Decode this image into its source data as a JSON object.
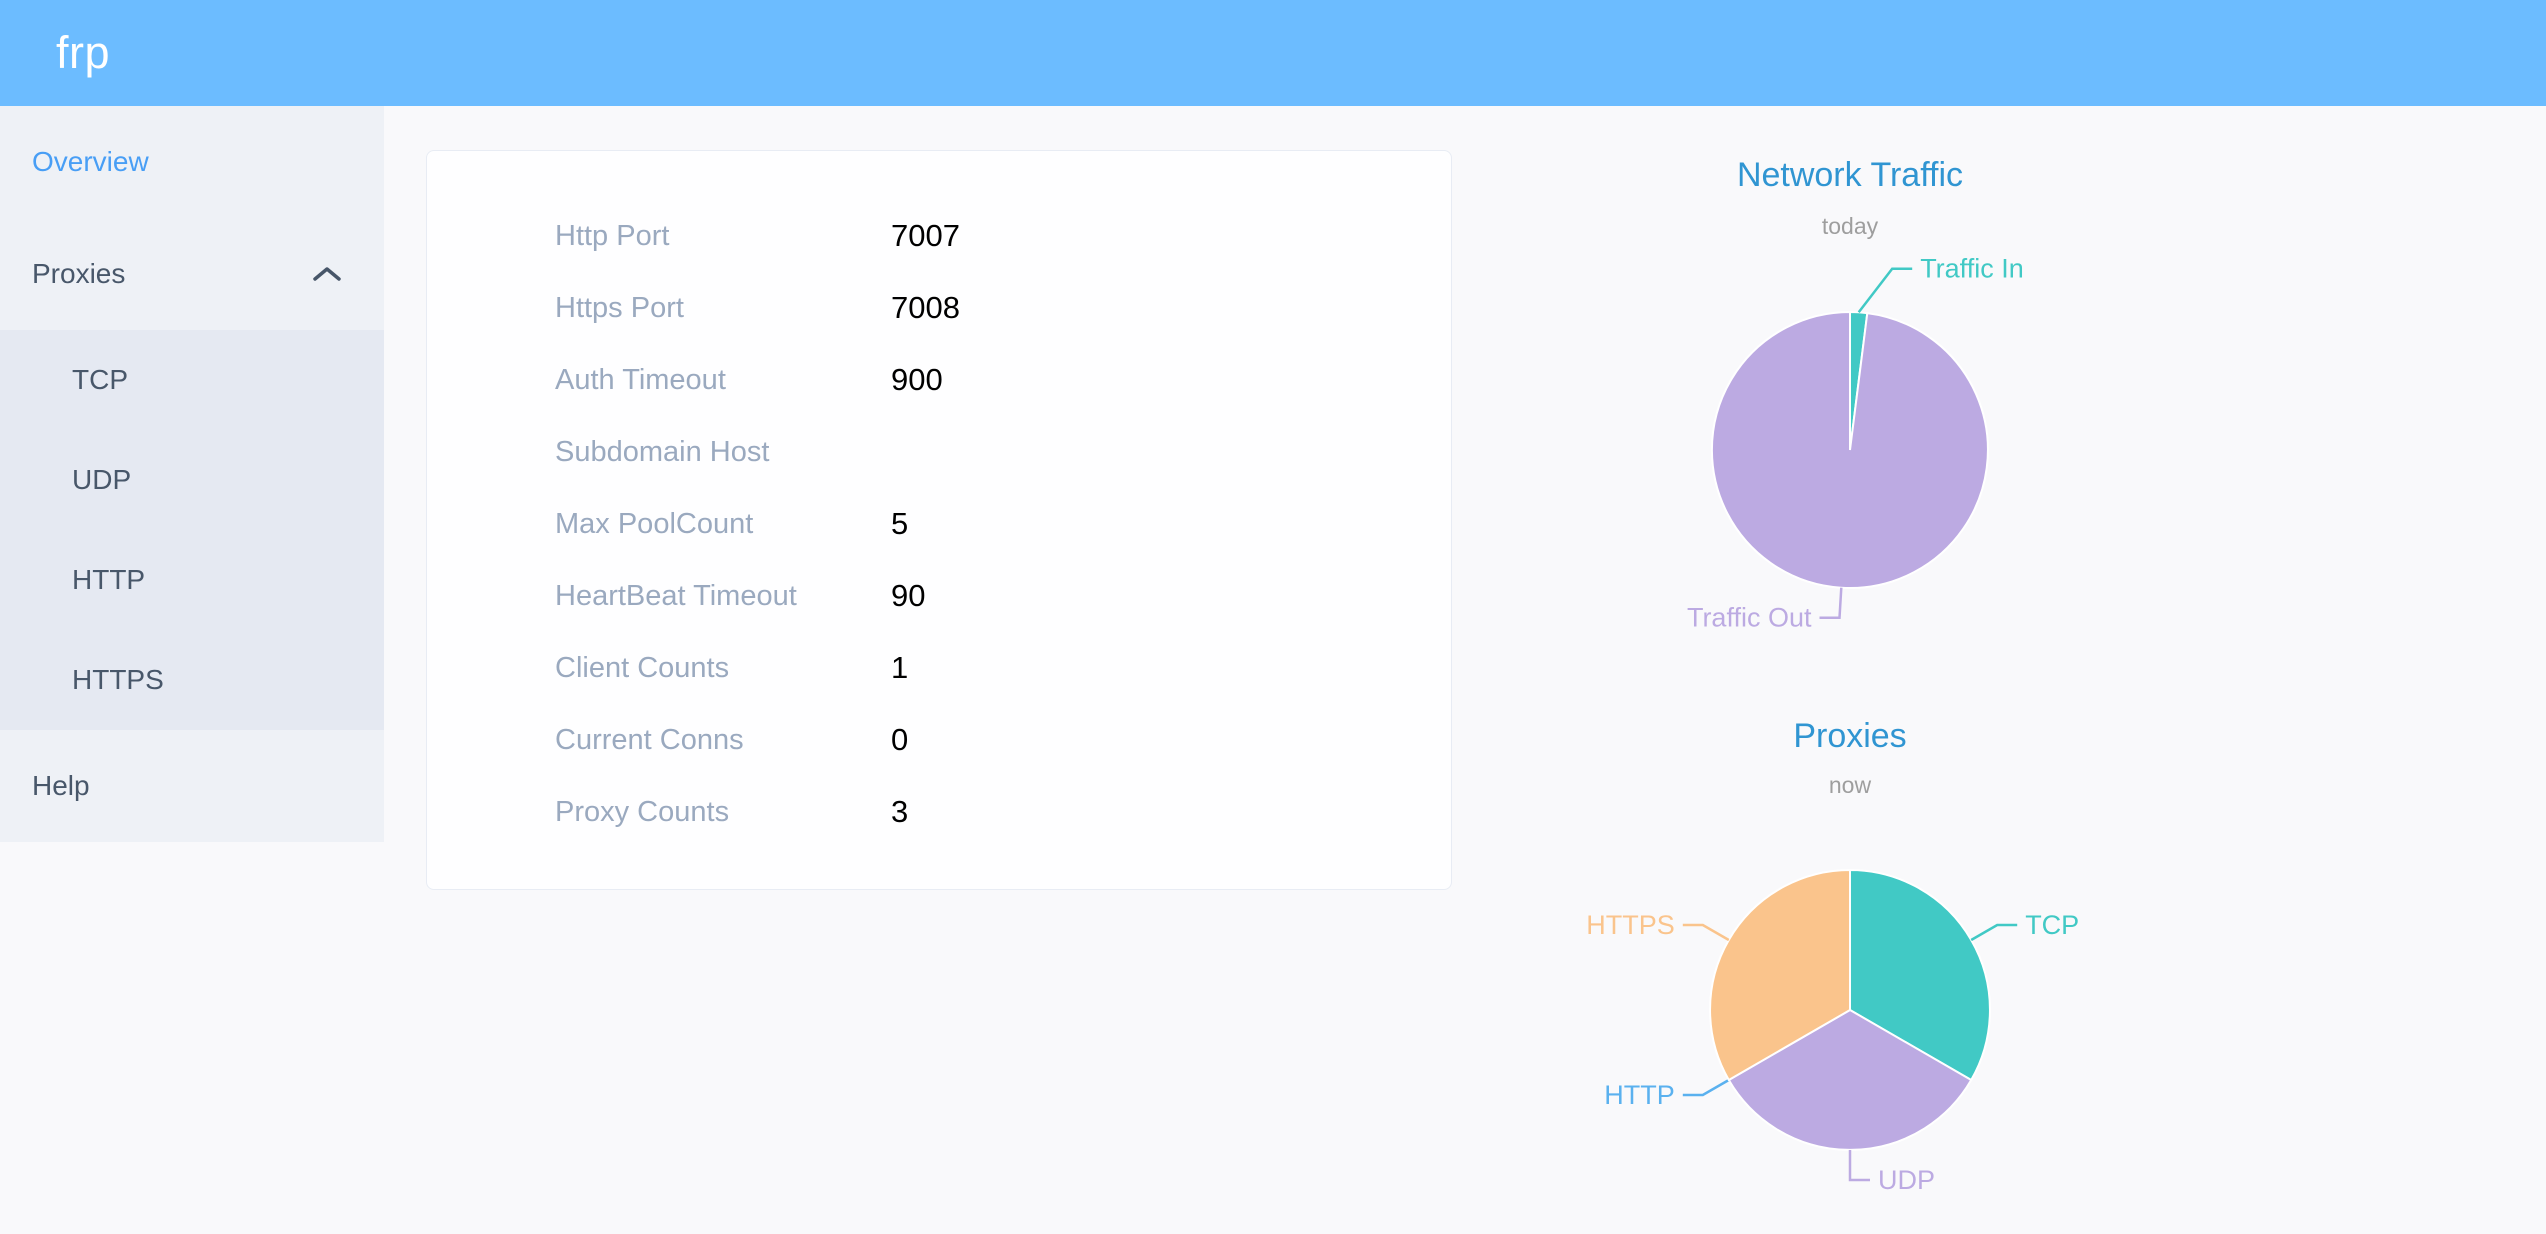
{
  "header": {
    "logo": "frp",
    "bg_color": "#6cbcff"
  },
  "sidebar": {
    "overview": {
      "label": "Overview",
      "active": true,
      "active_color": "#489ef5"
    },
    "proxies": {
      "label": "Proxies",
      "expanded": true
    },
    "submenu": [
      {
        "label": "TCP"
      },
      {
        "label": "UDP"
      },
      {
        "label": "HTTP"
      },
      {
        "label": "HTTPS"
      }
    ],
    "help": {
      "label": "Help"
    }
  },
  "server_info": {
    "rows": [
      {
        "label": "Http Port",
        "value": "7007"
      },
      {
        "label": "Https Port",
        "value": "7008"
      },
      {
        "label": "Auth Timeout",
        "value": "900"
      },
      {
        "label": "Subdomain Host",
        "value": ""
      },
      {
        "label": "Max PoolCount",
        "value": "5"
      },
      {
        "label": "HeartBeat Timeout",
        "value": "90"
      },
      {
        "label": "Client Counts",
        "value": "1"
      },
      {
        "label": "Current Conns",
        "value": "0"
      },
      {
        "label": "Proxy Counts",
        "value": "3"
      }
    ]
  },
  "chart_data": [
    {
      "type": "pie",
      "title": "Network Traffic",
      "subtitle": "today",
      "value_unit": "percent (estimated from pie angles, no numbers shown)",
      "legend_position": "none",
      "labels_style": "leader-lines",
      "slices": [
        {
          "label": "Traffic In",
          "value": 2,
          "color": "#41c9c5"
        },
        {
          "label": "Traffic Out",
          "value": 98,
          "color": "#bcaae2"
        }
      ]
    },
    {
      "type": "pie",
      "title": "Proxies",
      "subtitle": "now",
      "value_unit": "proxy count (total Proxy Counts = 3)",
      "legend_position": "none",
      "labels_style": "leader-lines",
      "slices": [
        {
          "label": "TCP",
          "value": 1,
          "color": "#41c9c5"
        },
        {
          "label": "UDP",
          "value": 1,
          "color": "#bcaae2"
        },
        {
          "label": "HTTP",
          "value": 0,
          "color": "#5ab1ef"
        },
        {
          "label": "HTTPS",
          "value": 1,
          "color": "#fac48c"
        }
      ]
    }
  ]
}
